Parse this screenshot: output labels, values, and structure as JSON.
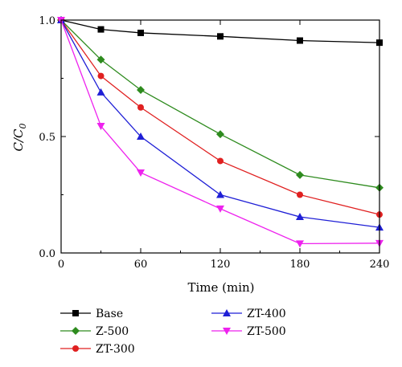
{
  "chart_data": {
    "type": "line",
    "title": "",
    "xlabel": "Time (min)",
    "ylabel": "C/C",
    "ylabel_sub": "0",
    "xlim": [
      0,
      240
    ],
    "ylim": [
      0,
      1.0
    ],
    "x_ticks": [
      0,
      60,
      120,
      180,
      240
    ],
    "x_tick_labels": [
      "0",
      "60",
      "120",
      "180",
      "240"
    ],
    "y_ticks": [
      0,
      0.5,
      1.0
    ],
    "y_tick_labels": [
      "0.0",
      "0.5",
      "1.0"
    ],
    "grid": false,
    "legend_position": "bottom",
    "x": [
      0,
      30,
      60,
      120,
      180,
      240
    ],
    "series": [
      {
        "name": "Base",
        "color": "#000000",
        "marker": "square",
        "values": [
          1.0,
          0.96,
          0.945,
          0.93,
          0.912,
          0.903
        ]
      },
      {
        "name": "Z-500",
        "color": "#2e8b1e",
        "marker": "diamond",
        "values": [
          1.0,
          0.83,
          0.7,
          0.51,
          0.335,
          0.28
        ]
      },
      {
        "name": "ZT-300",
        "color": "#e02020",
        "marker": "circle",
        "values": [
          1.0,
          0.76,
          0.625,
          0.395,
          0.25,
          0.165
        ]
      },
      {
        "name": "ZT-400",
        "color": "#1f1fd6",
        "marker": "triangle-up",
        "values": [
          1.0,
          0.69,
          0.5,
          0.25,
          0.155,
          0.11
        ]
      },
      {
        "name": "ZT-500",
        "color": "#ee22ee",
        "marker": "triangle-down",
        "values": [
          1.0,
          0.545,
          0.345,
          0.19,
          0.04,
          0.042
        ]
      }
    ]
  }
}
